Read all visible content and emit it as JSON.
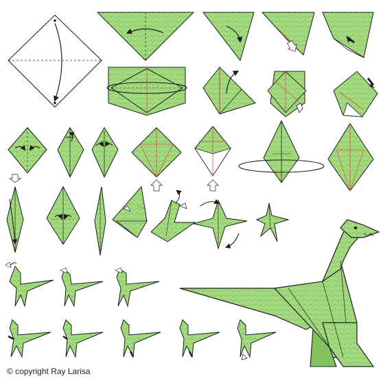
{
  "diagram": {
    "subject": "origami dinosaur folding steps",
    "colors": {
      "paper": "#a6dc82",
      "paper_dark": "#82c35e",
      "texture": "#6aa646",
      "outline": "#1d1d1d",
      "fold_line": "#d9533b",
      "arrow": "#1d1d1d",
      "open_arrow": "#ffffff"
    }
  },
  "footer": {
    "credit": "© copyright Ray Larisa"
  }
}
